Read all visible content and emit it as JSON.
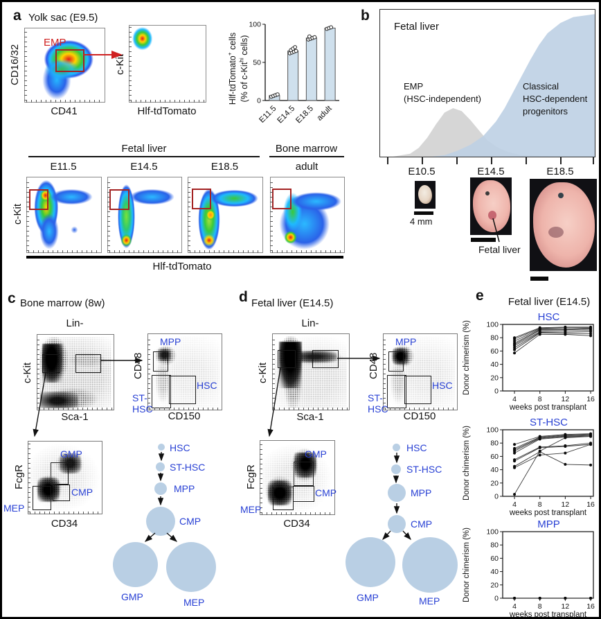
{
  "panels": {
    "a": "a",
    "b": "b",
    "c": "c",
    "d": "d",
    "e": "e"
  },
  "colors": {
    "accent_blue": "#2840d4",
    "light_blue": "#b9cfe4",
    "gate_red": "#a42222",
    "red_text": "#cf2020",
    "emp_gray": "#d4d4d4",
    "classical_blue": "#bed0e4",
    "bar_fill": "#cfe0ed"
  },
  "panel_a": {
    "title": "Yolk sac (E9.5)",
    "p1": {
      "ylabel": "CD16/32",
      "xlabel": "CD41",
      "gate_label": "EMP"
    },
    "p2": {
      "ylabel": "c-Kit",
      "xlabel": "Hlf-tdTomato"
    },
    "bar": {
      "yl1a": "Hlf-tdTomato",
      "yl1sup": "+",
      "yl1b": " cells",
      "yl2a": "(% of c-Kit",
      "yl2sup": "hi",
      "yl2b": " cells)"
    },
    "row": {
      "group_fl": "Fetal liver",
      "group_bm": "Bone marrow",
      "cols": [
        "E11.5",
        "E14.5",
        "E18.5",
        "adult"
      ],
      "ylabel": "c-Kit",
      "xlabel": "Hlf-tdTomato"
    }
  },
  "panel_b": {
    "title": "Fetal liver",
    "emp1": "EMP",
    "emp2": "(HSC-independent)",
    "cls1": "Classical",
    "cls2": "HSC-dependent",
    "cls3": "progenitors",
    "xticklabels": [
      "E10.5",
      "E14.5",
      "E18.5"
    ],
    "scale_label": "4 mm",
    "fl_label": "Fetal liver"
  },
  "panel_c": {
    "title": "Bone marrow (8w)",
    "lin": "Lin-",
    "p1": {
      "ylabel": "c-Kit",
      "xlabel": "Sca-1"
    },
    "p2": {
      "ylabel": "CD48",
      "xlabel": "CD150",
      "mpp": "MPP",
      "hsc": "HSC",
      "st1": "ST-",
      "st2": "HSC"
    },
    "p3": {
      "ylabel": "FcgR",
      "xlabel": "CD34",
      "gmp": "GMP",
      "cmp": "CMP",
      "mep": "MEP"
    }
  },
  "panel_d": {
    "title": "Fetal liver (E14.5)",
    "lin": "Lin-",
    "p1": {
      "ylabel": "c-Kit",
      "xlabel": "Sca-1"
    },
    "p2": {
      "ylabel": "CD48",
      "xlabel": "CD150",
      "mpp": "MPP",
      "hsc": "HSC",
      "st1": "ST-",
      "st2": "HSC"
    },
    "p3": {
      "ylabel": "FcgR",
      "xlabel": "CD34",
      "gmp": "GMP",
      "cmp": "CMP",
      "mep": "MEP"
    }
  },
  "hier": {
    "hsc": "HSC",
    "st": "ST-HSC",
    "mpp": "MPP",
    "cmp": "CMP",
    "gmp": "GMP",
    "mep": "MEP"
  },
  "panel_e": {
    "title": "Fetal liver (E14.5)",
    "t1": "HSC",
    "t2": "ST-HSC",
    "t3": "MPP"
  },
  "chart_data": [
    {
      "id": "a_bar",
      "type": "bar",
      "categories": [
        "E11.5",
        "E14.5",
        "E18.5",
        "adult"
      ],
      "values": [
        6.5,
        65,
        82,
        95
      ],
      "dots": [
        [
          5,
          6,
          7,
          8
        ],
        [
          62,
          63,
          64,
          65,
          66,
          68,
          70
        ],
        [
          80,
          81,
          82,
          83,
          84
        ],
        [
          94,
          95,
          96
        ]
      ],
      "ylabel": "Hlf-tdTomato+ cells (% of c-Kithi cells)",
      "yticks": [
        0,
        50,
        100
      ],
      "ylim": [
        0,
        100
      ],
      "bar_color": "#cfe0ed"
    },
    {
      "id": "b_timeline",
      "type": "area",
      "xlabels": [
        "E10.5",
        "E14.5",
        "E18.5"
      ],
      "series": [
        {
          "name": "EMP (HSC-independent)",
          "color": "#d4d4d4",
          "opacity": 0.95,
          "points": [
            [
              6,
              0
            ],
            [
              10,
              1
            ],
            [
              14,
              2
            ],
            [
              18,
              6
            ],
            [
              22,
              13
            ],
            [
              26,
              22
            ],
            [
              30,
              30
            ],
            [
              34,
              33
            ],
            [
              38,
              31
            ],
            [
              42,
              25
            ],
            [
              46,
              18
            ],
            [
              50,
              11
            ],
            [
              55,
              6
            ],
            [
              60,
              3
            ],
            [
              66,
              1
            ],
            [
              74,
              0.5
            ],
            [
              82,
              0
            ]
          ]
        },
        {
          "name": "Classical HSC-dependent progenitors",
          "color": "#bed0e4",
          "opacity": 0.9,
          "points": [
            [
              24,
              0
            ],
            [
              30,
              1
            ],
            [
              36,
              4
            ],
            [
              42,
              8
            ],
            [
              48,
              14
            ],
            [
              54,
              24
            ],
            [
              58,
              33
            ],
            [
              62,
              44
            ],
            [
              66,
              55
            ],
            [
              70,
              66
            ],
            [
              74,
              76
            ],
            [
              78,
              84
            ],
            [
              84,
              91
            ],
            [
              90,
              95
            ],
            [
              100,
              97
            ]
          ]
        }
      ]
    },
    {
      "id": "e_hsc",
      "type": "line",
      "title": "HSC",
      "x": [
        4,
        8,
        12,
        16
      ],
      "xlabel": "weeks post transplant",
      "ylabel": "Donor chimerism (%)",
      "ylim": [
        0,
        100
      ],
      "yticks": [
        0,
        20,
        40,
        60,
        80,
        100
      ],
      "series": [
        [
          80,
          95,
          96,
          96
        ],
        [
          78,
          94,
          95,
          95
        ],
        [
          75,
          93,
          93,
          94
        ],
        [
          72,
          92,
          92,
          93
        ],
        [
          70,
          91,
          92,
          93
        ],
        [
          68,
          89,
          90,
          91
        ],
        [
          65,
          88,
          88,
          89
        ],
        [
          62,
          87,
          86,
          86
        ],
        [
          57,
          85,
          85,
          83
        ]
      ]
    },
    {
      "id": "e_sthsc",
      "type": "line",
      "title": "ST-HSC",
      "x": [
        4,
        8,
        12,
        16
      ],
      "xlabel": "weeks post transplant",
      "ylabel": "Donor chimerism (%)",
      "ylim": [
        0,
        100
      ],
      "yticks": [
        0,
        20,
        40,
        60,
        80,
        100
      ],
      "series": [
        [
          78,
          90,
          93,
          94
        ],
        [
          72,
          89,
          92,
          93
        ],
        [
          70,
          88,
          91,
          92
        ],
        [
          68,
          87,
          90,
          91
        ],
        [
          65,
          86,
          89,
          90
        ],
        [
          55,
          74,
          76,
          80
        ],
        [
          53,
          73,
          75,
          78
        ],
        [
          45,
          67,
          48,
          47
        ],
        [
          43,
          62,
          65,
          78
        ],
        [
          3,
          68,
          88,
          90
        ]
      ]
    },
    {
      "id": "e_mpp",
      "type": "line",
      "title": "MPP",
      "x": [
        4,
        8,
        12,
        16
      ],
      "xlabel": "weeks post transplant",
      "ylabel": "Donor chimerism (%)",
      "ylim": [
        0,
        100
      ],
      "yticks": [
        0,
        20,
        40,
        60,
        80,
        100
      ],
      "series": [
        [
          0,
          0,
          0,
          0
        ],
        [
          0,
          0,
          0,
          0
        ],
        [
          0,
          0,
          0,
          0
        ],
        [
          0,
          0,
          0,
          0
        ]
      ]
    }
  ]
}
